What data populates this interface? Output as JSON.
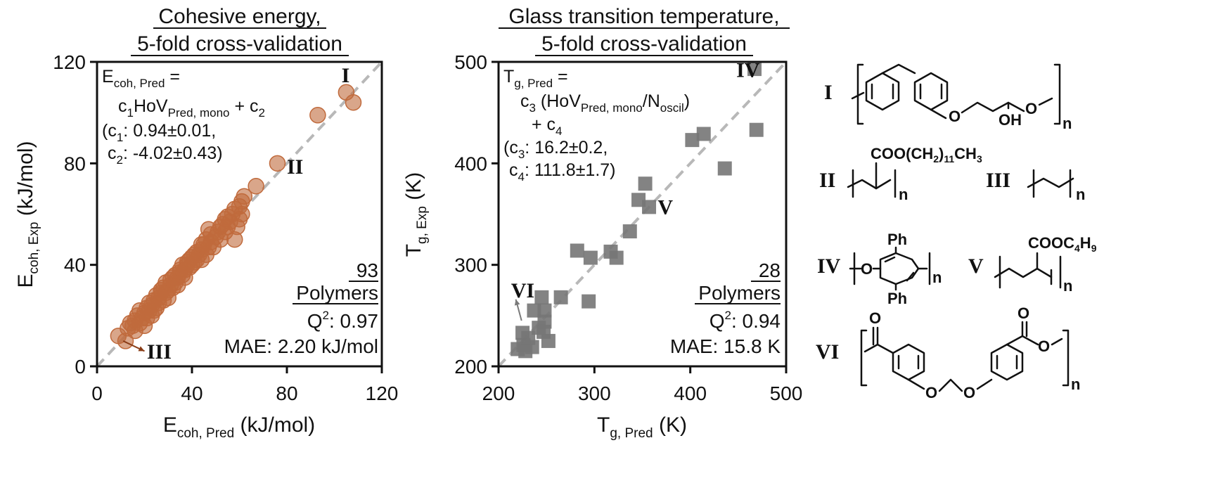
{
  "chart_data": [
    {
      "type": "scatter",
      "title": [
        "Cohesive energy,",
        "5-fold cross-validation"
      ],
      "xlabel": {
        "main": "E",
        "sub": "coh, Pred",
        "unit": " (kJ/mol)"
      },
      "ylabel": {
        "main": "E",
        "sub": "coh, Exp",
        "unit": " (kJ/mol)"
      },
      "xlim": [
        0,
        120
      ],
      "ylim": [
        0,
        120
      ],
      "xticks": [
        0,
        40,
        80,
        120
      ],
      "yticks": [
        0,
        40,
        80,
        120
      ],
      "marker": "circle",
      "color": "#c06a3c",
      "equation": {
        "lhs_main": "E",
        "lhs_sub": "coh, Pred",
        "eq": " =",
        "rhs_a": "c",
        "rhs_a_sub": "1",
        "rhs_b": "HoV",
        "rhs_b_sub": "Pred, mono",
        "rhs_c": " + c",
        "rhs_c_sub": "2",
        "c1_open": "(c",
        "c1_sub": "1",
        "c1_val": ": 0.94±0.01,",
        "c2_open": "c",
        "c2_sub": "2",
        "c2_val": ": -4.02±0.43)"
      },
      "stats": {
        "count": "93",
        "count_label": "Polymers",
        "q2_label": "Q",
        "q2_sup": "2",
        "q2_value": ": 0.97",
        "mae": "MAE: 2.20 kJ/mol"
      },
      "labels": [
        {
          "text": "I",
          "x": 103,
          "y": 112
        },
        {
          "text": "II",
          "x": 80,
          "y": 76
        },
        {
          "text": "III",
          "x": 21,
          "y": 3
        }
      ],
      "arrow": {
        "from": [
          11,
          10
        ],
        "to": [
          20,
          6
        ]
      },
      "points": [
        [
          9,
          12
        ],
        [
          12,
          10
        ],
        [
          13,
          15
        ],
        [
          14,
          17
        ],
        [
          15,
          16
        ],
        [
          16,
          18
        ],
        [
          16,
          14
        ],
        [
          17,
          20
        ],
        [
          18,
          17
        ],
        [
          18,
          22
        ],
        [
          19,
          19
        ],
        [
          20,
          21
        ],
        [
          20,
          16
        ],
        [
          21,
          23
        ],
        [
          21,
          19
        ],
        [
          22,
          22
        ],
        [
          22,
          25
        ],
        [
          23,
          20
        ],
        [
          23,
          24
        ],
        [
          24,
          26
        ],
        [
          24,
          22
        ],
        [
          25,
          28
        ],
        [
          25,
          23
        ],
        [
          26,
          27
        ],
        [
          26,
          25
        ],
        [
          27,
          29
        ],
        [
          27,
          30
        ],
        [
          28,
          26
        ],
        [
          28,
          31
        ],
        [
          29,
          29
        ],
        [
          29,
          33
        ],
        [
          30,
          30
        ],
        [
          30,
          27
        ],
        [
          31,
          32
        ],
        [
          31,
          34
        ],
        [
          32,
          31
        ],
        [
          32,
          35
        ],
        [
          33,
          33
        ],
        [
          33,
          36
        ],
        [
          34,
          35
        ],
        [
          34,
          32
        ],
        [
          35,
          37
        ],
        [
          35,
          38
        ],
        [
          36,
          36
        ],
        [
          36,
          40
        ],
        [
          37,
          38
        ],
        [
          37,
          35
        ],
        [
          38,
          40
        ],
        [
          38,
          41
        ],
        [
          39,
          39
        ],
        [
          39,
          42
        ],
        [
          40,
          40
        ],
        [
          40,
          43
        ],
        [
          41,
          41
        ],
        [
          41,
          44
        ],
        [
          42,
          42
        ],
        [
          42,
          45
        ],
        [
          43,
          44
        ],
        [
          44,
          46
        ],
        [
          44,
          42
        ],
        [
          45,
          48
        ],
        [
          46,
          44
        ],
        [
          46,
          50
        ],
        [
          47,
          54
        ],
        [
          47,
          47
        ],
        [
          48,
          49
        ],
        [
          48,
          52
        ],
        [
          49,
          47
        ],
        [
          50,
          51
        ],
        [
          51,
          53
        ],
        [
          52,
          50
        ],
        [
          52,
          55
        ],
        [
          53,
          56
        ],
        [
          54,
          53
        ],
        [
          54,
          58
        ],
        [
          55,
          55
        ],
        [
          55,
          59
        ],
        [
          56,
          57
        ],
        [
          57,
          60
        ],
        [
          58,
          62
        ],
        [
          58,
          50
        ],
        [
          59,
          55
        ],
        [
          60,
          58
        ],
        [
          60,
          63
        ],
        [
          61,
          60
        ],
        [
          61,
          65
        ],
        [
          62,
          67
        ],
        [
          67,
          71
        ],
        [
          76,
          80
        ],
        [
          93,
          99
        ],
        [
          105,
          108
        ],
        [
          108,
          104
        ],
        [
          44,
          48
        ]
      ]
    },
    {
      "type": "scatter",
      "title": [
        "Glass transition temperature,",
        "5-fold cross-validation"
      ],
      "xlabel": {
        "main": "T",
        "sub": "g, Pred",
        "unit": " (K)"
      },
      "ylabel": {
        "main": "T",
        "sub": "g, Exp",
        "unit": " (K)"
      },
      "xlim": [
        200,
        500
      ],
      "ylim": [
        200,
        500
      ],
      "xticks": [
        200,
        300,
        400,
        500
      ],
      "yticks": [
        200,
        300,
        400,
        500
      ],
      "marker": "square",
      "color": "#757575",
      "equation": {
        "lhs_main": "T",
        "lhs_sub": "g, Pred",
        "eq": " =",
        "rhs_a": "c",
        "rhs_a_sub": "3",
        "rhs_b": " (HoV",
        "rhs_b_sub": "Pred, mono",
        "rhs_c": "/N",
        "rhs_c_sub": "oscil",
        "rhs_d": ")",
        "plus": "+ c",
        "plus_sub": "4",
        "c1_open": "(c",
        "c1_sub": "3",
        "c1_val": ": 16.2±0.2,",
        "c2_open": "c",
        "c2_sub": "4",
        "c2_val": ": 111.8±1.7)"
      },
      "stats": {
        "count": "28",
        "count_label": "Polymers",
        "q2_label": "Q",
        "q2_sup": "2",
        "q2_value": ": 0.94",
        "mae": "MAE: 15.8 K"
      },
      "labels": [
        {
          "text": "IV",
          "x": 448,
          "y": 485
        },
        {
          "text": "V",
          "x": 366,
          "y": 350
        },
        {
          "text": "VI",
          "x": 213,
          "y": 268
        }
      ],
      "arrow": {
        "from": [
          224,
          245
        ],
        "to": [
          218,
          266
        ]
      },
      "points": [
        [
          467,
          493
        ],
        [
          469,
          433
        ],
        [
          402,
          423
        ],
        [
          414,
          429
        ],
        [
          436,
          395
        ],
        [
          353,
          380
        ],
        [
          346,
          364
        ],
        [
          357,
          357
        ],
        [
          337,
          333
        ],
        [
          282,
          314
        ],
        [
          296,
          307
        ],
        [
          317,
          313
        ],
        [
          323,
          307
        ],
        [
          294,
          264
        ],
        [
          265,
          268
        ],
        [
          245,
          268
        ],
        [
          237,
          255
        ],
        [
          248,
          255
        ],
        [
          248,
          244
        ],
        [
          242,
          238
        ],
        [
          225,
          233
        ],
        [
          231,
          228
        ],
        [
          226,
          221
        ],
        [
          220,
          217
        ],
        [
          235,
          219
        ],
        [
          228,
          215
        ],
        [
          252,
          225
        ],
        [
          247,
          234
        ]
      ]
    }
  ],
  "structures": {
    "numerals": [
      "I",
      "II",
      "III",
      "IV",
      "V",
      "VI"
    ],
    "n": "n",
    "oxygen": "O",
    "hydroxyl": "OH",
    "phenyl": "Ph",
    "ii_group": {
      "a": "COO(CH",
      "b": "2",
      "c": ")",
      "d": "11",
      "e": "CH",
      "f": "3"
    },
    "v_group": {
      "a": "COOC",
      "b": "4",
      "c": "H",
      "d": "9"
    }
  }
}
